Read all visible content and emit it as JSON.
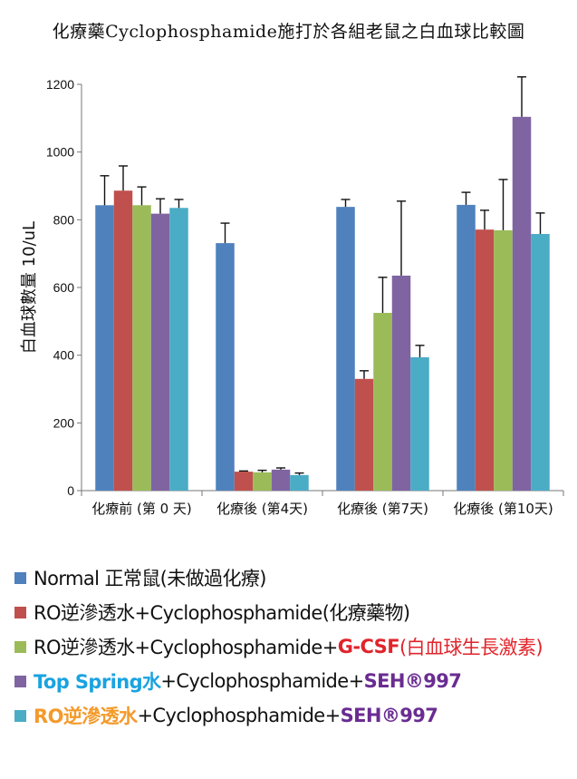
{
  "chart_data": {
    "type": "bar",
    "title": "化療藥Cyclophosphamide施打於各組老鼠之白血球比較圖",
    "xlabel": "",
    "ylabel": "白血球數量 10/uL",
    "ylim": [
      0,
      1200
    ],
    "yticks": [
      "0",
      "200",
      "400",
      "600",
      "800",
      "1000",
      "1200"
    ],
    "grid": false,
    "legend_position": "bottom",
    "categories": [
      "化療前 (第 0 天)",
      "化療後 (第4天)",
      "化療後 (第7天)",
      "化療後 (第10天)"
    ],
    "series": [
      {
        "name": "Normal 正常鼠(未做過化療)",
        "color": "#4F81BD",
        "values": [
          843,
          731,
          838,
          844
        ],
        "error_upper": [
          930,
          790,
          860,
          881
        ]
      },
      {
        "name": "RO逆滲透水+Cyclophosphamide(化療藥物)",
        "color": "#C0504D",
        "values": [
          886,
          56,
          330,
          771
        ],
        "error_upper": [
          959,
          58,
          354,
          828
        ]
      },
      {
        "name": "RO逆滲透水+Cyclophosphamide+G-CSF(白血球生長激素)",
        "color": "#9BBB59",
        "values": [
          843,
          54,
          525,
          769
        ],
        "error_upper": [
          897,
          60,
          630,
          919
        ]
      },
      {
        "name": "Top Spring水+Cyclophosphamide+SEH®997",
        "color": "#8064A2",
        "values": [
          818,
          62,
          635,
          1104
        ],
        "error_upper": [
          862,
          67,
          855,
          1222
        ]
      },
      {
        "name": "RO逆滲透水+Cyclophosphamide+SEH®997",
        "color": "#4BACC6",
        "values": [
          835,
          46,
          394,
          758
        ],
        "error_upper": [
          860,
          52,
          429,
          820
        ]
      }
    ]
  },
  "legend": [
    {
      "parts": [
        {
          "text": "Normal 正常鼠(未做過化療)",
          "color": "#111111",
          "bold": false
        }
      ]
    },
    {
      "parts": [
        {
          "text": "RO逆滲透水+Cyclophosphamide(化療藥物)",
          "color": "#111111",
          "bold": false
        }
      ]
    },
    {
      "parts": [
        {
          "text": "RO逆滲透水+Cyclophosphamide+",
          "color": "#111111",
          "bold": false
        },
        {
          "text": "G-CSF",
          "color": "#E0242B",
          "bold": true
        },
        {
          "text": "(白血球生長激素)",
          "color": "#E0242B",
          "bold": false
        }
      ]
    },
    {
      "parts": [
        {
          "text": "Top Spring水",
          "color": "#1AA3E0",
          "bold": true
        },
        {
          "text": "+Cyclophosphamide+",
          "color": "#111111",
          "bold": false
        },
        {
          "text": "SEH®997",
          "color": "#6A2C91",
          "bold": true
        }
      ]
    },
    {
      "parts": [
        {
          "text": "RO逆滲透水",
          "color": "#F39A2B",
          "bold": true
        },
        {
          "text": "+Cyclophosphamide+",
          "color": "#111111",
          "bold": false
        },
        {
          "text": "SEH®997",
          "color": "#6A2C91",
          "bold": true
        }
      ]
    }
  ]
}
